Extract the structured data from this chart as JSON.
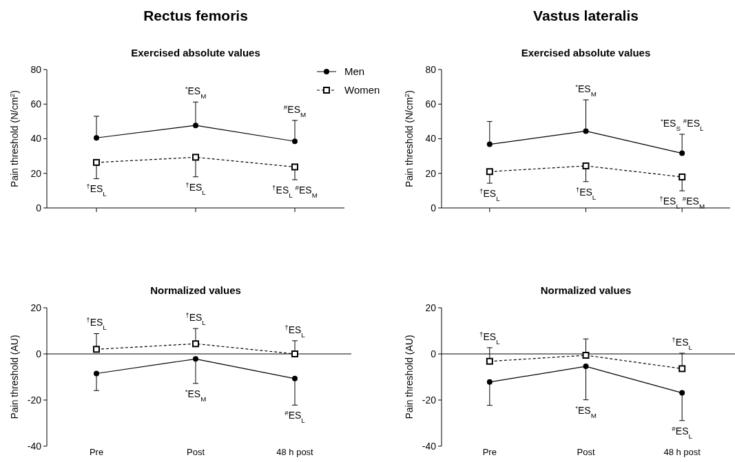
{
  "chart_data": [
    {
      "type": "line",
      "title": "Rectus femoris",
      "subtitle": "Exercised absolute values",
      "ylabel": "Pain threshold (N/cm$^{2}$)",
      "categories": [
        "Pre",
        "Post",
        "48 h post"
      ],
      "ylim": [
        0,
        80
      ],
      "yticks": [
        0,
        20,
        40,
        60,
        80
      ],
      "tick_labels": "y",
      "legend": "top right",
      "grid": false,
      "series": [
        {
          "name": "Men",
          "color": "#000000",
          "marker": "circle",
          "line_style": "solid",
          "values": [
            40.5,
            47.7,
            38.5
          ],
          "errors": [
            [
              40.5,
              53
            ],
            [
              47.7,
              61.2
            ],
            [
              38.5,
              50.6
            ]
          ]
        },
        {
          "name": "Women",
          "color": "#000000",
          "marker": "square",
          "line_style": "dashed",
          "values": [
            26.3,
            29.3,
            23.7
          ],
          "errors": [
            [
              16.9,
              26.3
            ],
            [
              18,
              29.3
            ],
            [
              16.3,
              23.7
            ]
          ]
        }
      ],
      "annotations": [
        {
          "text": "$^{*}$ES$_{M}$",
          "x": "Post",
          "y": 47.7
        },
        {
          "text": "$^{#}$ES$_{M}$",
          "x": "48 h post",
          "y": 38.5
        },
        {
          "text": "$^{†}$ES$_{L}$",
          "x": "Pre",
          "y": 26.3
        },
        {
          "text": "$^{†}$ES$_{L}$",
          "x": "Post",
          "y": 29.3
        },
        {
          "text": "$^{†}$ES$_{L}$ $^{#}$ES$_{M}$",
          "x": "48 h post",
          "y": 23.7
        }
      ]
    },
    {
      "type": "line",
      "title": "Vastus lateralis",
      "subtitle": "Exercised absolute values",
      "ylabel": "Pain threshold (N/cm$^{2}$)",
      "categories": [
        "Pre",
        "Post",
        "48 h post"
      ],
      "ylim": [
        0,
        80
      ],
      "yticks": [
        0,
        20,
        40,
        60,
        80
      ],
      "tick_labels": "y",
      "grid": false,
      "series": [
        {
          "color": "#000000",
          "marker": "circle",
          "line_style": "solid",
          "values": [
            36.8,
            44.4,
            31.6
          ],
          "errors": [
            [
              36.8,
              50
            ],
            [
              44.4,
              62.5
            ],
            [
              31.6,
              42.6
            ]
          ]
        },
        {
          "color": "#000000",
          "marker": "square",
          "line_style": "dashed",
          "values": [
            21,
            24.3,
            17.9
          ],
          "errors": [
            [
              14.3,
              21
            ],
            [
              15.2,
              24.3
            ],
            [
              9.9,
              17.9
            ]
          ]
        }
      ],
      "annotations": [
        {
          "text": "$^{*}$ES$_{M}$",
          "x": "Post",
          "y": 62.5
        },
        {
          "text": "$^{*}$ES$_{S}$ $^{#}$ES$_{L}$",
          "x": "48 h post",
          "y": 31.6
        },
        {
          "text": "$^{†}$ES$_{L}$",
          "x": "Pre",
          "y": 21
        },
        {
          "text": "$^{†}$ES$_{L}$",
          "x": "Post",
          "y": 24.3
        },
        {
          "text": "$^{†}$ES$_{L}$  $^{#}$ES$_{M}$",
          "x": "48 h post",
          "y": 17.9
        }
      ]
    },
    {
      "type": "line",
      "title": "Normalized values",
      "ylabel": "Pain threshold (AU)",
      "categories": [
        "Pre",
        "Post",
        "48 h post"
      ],
      "ylim": [
        -40,
        20
      ],
      "yticks": [
        -40,
        -20,
        0,
        20
      ],
      "grid": false,
      "ref_lines": [
        {
          "axis": "y",
          "value": 0
        }
      ],
      "series": [
        {
          "color": "#000000",
          "marker": "circle",
          "line_style": "solid",
          "values": [
            -8.5,
            -2.2,
            -10.7
          ],
          "errors": [
            [
              -15.9,
              -8.5
            ],
            [
              -12.8,
              -2.2
            ],
            [
              -22.2,
              -10.7
            ]
          ]
        },
        {
          "color": "#000000",
          "marker": "square",
          "line_style": "dashed",
          "values": [
            2,
            4.4,
            0
          ],
          "errors": [
            [
              2,
              8.8
            ],
            [
              4.4,
              11
            ],
            [
              0,
              5.7
            ]
          ]
        }
      ],
      "annotations": [
        {
          "text": "$^{†}$ES$_{L}$",
          "x": "Pre",
          "y": 2
        },
        {
          "text": "$^{†}$ES$_{L}$",
          "x": "Post",
          "y": 4.4
        },
        {
          "text": "$^{†}$ES$_{L}$",
          "x": "48 h post",
          "y": 0
        },
        {
          "text": "$^{*}$ES$_{M}$",
          "x": "Post",
          "y": -12.8
        },
        {
          "text": "$^{#}$ES$_{L}$",
          "x": "48 h post",
          "y": -22.2
        }
      ]
    },
    {
      "type": "line",
      "title": "Normalized values",
      "ylabel": "Pain threshold (AU)",
      "categories": [
        "Pre",
        "Post",
        "48 h post"
      ],
      "ylim": [
        -40,
        20
      ],
      "yticks": [
        -40,
        -20,
        0,
        20
      ],
      "grid": false,
      "ref_lines": [
        {
          "axis": "y",
          "value": 0
        }
      ],
      "series": [
        {
          "color": "#000000",
          "marker": "circle",
          "line_style": "solid",
          "values": [
            -12.2,
            -5.4,
            -16.9
          ],
          "errors": [
            [
              -22.3,
              -12.2
            ],
            [
              -19.9,
              -5.4
            ],
            [
              -28.9,
              -16.9
            ]
          ]
        },
        {
          "color": "#000000",
          "marker": "square",
          "line_style": "dashed",
          "values": [
            -3.2,
            -0.6,
            -6.4
          ],
          "errors": [
            [
              -3.2,
              2.7
            ],
            [
              -0.6,
              6.5
            ],
            [
              -6.4,
              0.3
            ]
          ]
        }
      ],
      "annotations": [
        {
          "text": "$^{†}$ES$_{L}$",
          "x": "Pre",
          "y": -3.2
        },
        {
          "text": "$^{†}$ES$_{L}$",
          "x": "48 h post",
          "y": -6.4
        },
        {
          "text": "$^{*}$ES$_{M}$",
          "x": "Post",
          "y": -19.9
        },
        {
          "text": "$^{#}$ES$_{L}$",
          "x": "48 h post",
          "y": -28.9
        }
      ]
    }
  ]
}
